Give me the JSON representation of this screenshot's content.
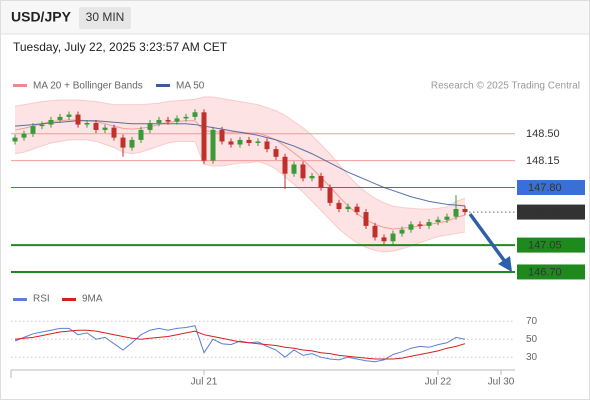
{
  "header": {
    "symbol": "USD/JPY",
    "interval": "30 MIN",
    "timestamp": "Tuesday, July 22, 2025 3:23:57 AM CET"
  },
  "chart_data": [
    {
      "type": "candlestick",
      "credit": "Research © 2025 Trading Central",
      "up_color": "#3a9a3a",
      "down_color": "#c0302a",
      "ylim": [
        146.53,
        148.94
      ],
      "categories": [
        null,
        null,
        null,
        null,
        null,
        null,
        null,
        null,
        null,
        null,
        null,
        null,
        null,
        null,
        null,
        null,
        null,
        null,
        null,
        null,
        null,
        "Jul 21",
        null,
        null,
        null,
        null,
        null,
        null,
        null,
        null,
        null,
        null,
        null,
        null,
        null,
        null,
        null,
        null,
        null,
        null,
        null,
        null,
        null,
        null,
        null,
        null,
        null,
        "Jul 22",
        null,
        null,
        null,
        null,
        null,
        null,
        "Jul 30",
        null
      ],
      "open": [
        148.4,
        148.45,
        148.5,
        148.6,
        148.62,
        148.68,
        148.72,
        148.75,
        148.62,
        148.64,
        148.55,
        148.58,
        148.45,
        148.32,
        148.42,
        148.55,
        148.64,
        148.68,
        148.66,
        148.7,
        148.72,
        148.78,
        148.15,
        148.55,
        148.4,
        148.36,
        148.42,
        148.38,
        148.4,
        148.3,
        148.2,
        147.98,
        148.1,
        147.92,
        147.95,
        147.8,
        147.6,
        147.52,
        147.55,
        147.48,
        147.3,
        147.15,
        147.1,
        147.2,
        147.25,
        147.32,
        147.3,
        147.35,
        147.38,
        147.42,
        147.52,
        null,
        null,
        null,
        null,
        null
      ],
      "high": [
        148.49,
        148.54,
        148.64,
        148.66,
        148.72,
        148.76,
        148.79,
        148.79,
        148.68,
        148.68,
        148.62,
        148.62,
        148.49,
        148.46,
        148.59,
        148.68,
        148.72,
        148.72,
        148.74,
        148.76,
        148.82,
        148.82,
        148.59,
        148.59,
        148.44,
        148.46,
        148.46,
        148.44,
        148.44,
        148.34,
        148.24,
        148.14,
        148.14,
        147.99,
        147.99,
        147.84,
        147.64,
        147.59,
        147.59,
        147.52,
        147.34,
        147.19,
        147.24,
        147.29,
        147.36,
        147.36,
        147.39,
        147.42,
        147.46,
        147.7,
        147.56,
        null,
        null,
        null,
        null,
        null
      ],
      "low": [
        148.36,
        148.41,
        148.46,
        148.56,
        148.58,
        148.64,
        148.68,
        148.58,
        148.58,
        148.51,
        148.51,
        148.41,
        148.2,
        148.28,
        148.38,
        148.51,
        148.6,
        148.62,
        148.62,
        148.66,
        148.68,
        148.11,
        148.11,
        148.36,
        148.32,
        148.32,
        148.34,
        148.34,
        148.26,
        148.16,
        147.78,
        147.94,
        147.88,
        147.88,
        147.76,
        147.56,
        147.48,
        147.48,
        147.44,
        147.26,
        147.11,
        147.06,
        147.06,
        147.16,
        147.21,
        147.26,
        147.26,
        147.31,
        147.34,
        147.38,
        147.44,
        null,
        null,
        null,
        null,
        null
      ],
      "close": [
        148.45,
        148.5,
        148.6,
        148.62,
        148.68,
        148.72,
        148.75,
        148.62,
        148.64,
        148.55,
        148.58,
        148.45,
        148.32,
        148.42,
        148.55,
        148.64,
        148.68,
        148.66,
        148.7,
        148.72,
        148.78,
        148.15,
        148.55,
        148.4,
        148.36,
        148.42,
        148.38,
        148.4,
        148.3,
        148.2,
        147.98,
        148.1,
        147.92,
        147.95,
        147.8,
        147.6,
        147.52,
        147.55,
        147.48,
        147.3,
        147.15,
        147.1,
        147.2,
        147.25,
        147.32,
        147.3,
        147.35,
        147.38,
        147.42,
        147.52,
        147.48,
        null,
        null,
        null,
        null,
        null
      ],
      "series": [
        {
          "name": "MA 20 + Bollinger Bands",
          "color": "#f08a8a",
          "band_color": "#fde3e3",
          "values": [
            148.55,
            148.57,
            148.6,
            148.63,
            148.66,
            148.67,
            148.68,
            148.68,
            148.67,
            148.66,
            148.63,
            148.6,
            148.57,
            148.56,
            148.57,
            148.59,
            148.62,
            148.65,
            148.66,
            148.67,
            148.67,
            148.54,
            148.53,
            148.52,
            148.52,
            148.52,
            148.51,
            148.51,
            148.47,
            148.42,
            148.34,
            148.25,
            148.16,
            148.05,
            147.93,
            147.81,
            147.68,
            147.56,
            147.46,
            147.38,
            147.32,
            147.28,
            147.26,
            147.27,
            147.28,
            147.3,
            147.32,
            147.34,
            147.36,
            147.41,
            147.44,
            null,
            null,
            null,
            null,
            null
          ],
          "upper": [
            148.86,
            148.88,
            148.9,
            148.92,
            148.93,
            148.94,
            148.94,
            148.94,
            148.93,
            148.92,
            148.9,
            148.88,
            148.88,
            148.88,
            148.88,
            148.89,
            148.9,
            148.92,
            148.93,
            148.94,
            148.95,
            148.98,
            148.98,
            148.96,
            148.94,
            148.92,
            148.9,
            148.88,
            148.84,
            148.8,
            148.74,
            148.66,
            148.58,
            148.48,
            148.36,
            148.24,
            148.1,
            147.96,
            147.84,
            147.74,
            147.66,
            147.6,
            147.56,
            147.54,
            147.53,
            147.52,
            147.52,
            147.53,
            147.55,
            147.62,
            147.66,
            null,
            null,
            null,
            null,
            null
          ],
          "lower": [
            148.24,
            148.26,
            148.3,
            148.34,
            148.38,
            148.4,
            148.42,
            148.42,
            148.42,
            148.4,
            148.36,
            148.32,
            148.26,
            148.24,
            148.26,
            148.3,
            148.34,
            148.38,
            148.4,
            148.4,
            148.4,
            148.1,
            148.08,
            148.08,
            148.1,
            148.12,
            148.12,
            148.14,
            148.1,
            148.04,
            147.94,
            147.84,
            147.74,
            147.62,
            147.5,
            147.38,
            147.26,
            147.16,
            147.08,
            147.02,
            146.98,
            146.96,
            146.97,
            147.0,
            147.04,
            147.08,
            147.12,
            147.16,
            147.18,
            147.2,
            147.22,
            null,
            null,
            null,
            null,
            null
          ]
        },
        {
          "name": "MA 50",
          "color": "#3b5c9c",
          "values": [
            148.6,
            148.61,
            148.62,
            148.63,
            148.64,
            148.65,
            148.66,
            148.67,
            148.67,
            148.67,
            148.66,
            148.65,
            148.64,
            148.63,
            148.63,
            148.63,
            148.63,
            148.63,
            148.63,
            148.63,
            148.62,
            148.6,
            148.58,
            148.56,
            148.54,
            148.52,
            148.5,
            148.48,
            148.45,
            148.42,
            148.38,
            148.34,
            148.29,
            148.24,
            148.18,
            148.12,
            148.06,
            148.0,
            147.95,
            147.9,
            147.85,
            147.8,
            147.76,
            147.72,
            147.68,
            147.65,
            147.62,
            147.6,
            147.58,
            147.57,
            147.56,
            null,
            null,
            null,
            null,
            null
          ]
        }
      ],
      "levels": [
        {
          "value": {
            "value": 148.5,
            "label": "148.50"
          },
          "color": "#f29b9b",
          "style": "solid",
          "label_style": "text",
          "text_color": "#d03030"
        },
        {
          "value": 148.15,
          "color": "#f29b9b",
          "style": "solid",
          "label_style": "text",
          "text_color": "#d03030"
        },
        {
          "value": {
            "value": 147.8,
            "label": "147.80"
          },
          "color": "#3a6fd8",
          "style": "solid",
          "label_style": "box",
          "text_color": "#ffffff"
        },
        {
          "value": 147.48,
          "color": "#666666",
          "style": "dotted",
          "label_style": "box",
          "text_color": "#ffffff",
          "box_color": "#333333"
        },
        {
          "value": 147.05,
          "color": "#1e8a1e",
          "style": "solid",
          "label_style": "box",
          "text_color": "#ffffff"
        },
        {
          "value": {
            "value": 146.7,
            "label": "146.70"
          },
          "color": "#1e8a1e",
          "style": "solid",
          "label_style": "box",
          "text_color": "#ffffff"
        }
      ]
    },
    {
      "type": "line",
      "ylim": [
        18,
        88
      ],
      "yticks": [
        30,
        50,
        70
      ],
      "series": [
        {
          "name": "RSI",
          "color": "#5b7fd6",
          "values": [
            48,
            52,
            56,
            58,
            60,
            62,
            62,
            55,
            57,
            50,
            52,
            45,
            38,
            46,
            55,
            60,
            62,
            60,
            62,
            63,
            65,
            35,
            50,
            45,
            44,
            48,
            46,
            47,
            42,
            38,
            30,
            38,
            32,
            34,
            30,
            28,
            27,
            30,
            28,
            26,
            25,
            27,
            33,
            36,
            40,
            42,
            41,
            44,
            46,
            52,
            50,
            null,
            null,
            null,
            null,
            null
          ]
        },
        {
          "name": "9MA",
          "color": "#d42020",
          "values": [
            50,
            51,
            52,
            54,
            56,
            58,
            59,
            60,
            60,
            59,
            57,
            55,
            53,
            51,
            50,
            51,
            52,
            53,
            55,
            57,
            59,
            55,
            53,
            51,
            49,
            47,
            46,
            45,
            44,
            43,
            41,
            40,
            38,
            37,
            35,
            34,
            32,
            31,
            30,
            29,
            28,
            28,
            28,
            29,
            31,
            33,
            35,
            37,
            40,
            42,
            45,
            null,
            null,
            null,
            null,
            null
          ]
        }
      ]
    }
  ]
}
